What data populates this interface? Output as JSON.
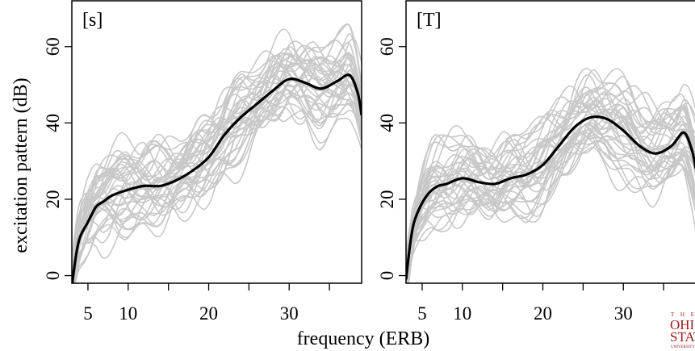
{
  "figure": {
    "xlabel": "frequency (ERB)",
    "ylabel": "excitation pattern (dB)"
  },
  "colors": {
    "individual_curve": "#c8c8c8",
    "mean_curve": "#000000",
    "logo": "#a0191e"
  },
  "logo": {
    "lines": [
      "T H E",
      "OHIO",
      "STATE",
      "UNIVERSITY"
    ]
  },
  "chart_data": [
    {
      "type": "line",
      "panel_label": "[s]",
      "xlabel": "frequency (ERB)",
      "ylabel": "excitation pattern (dB)",
      "xlim": [
        3,
        39
      ],
      "ylim": [
        -2,
        72
      ],
      "x_ticks": [
        5,
        10,
        20,
        30
      ],
      "x_minor_ticks": [
        15,
        25,
        35
      ],
      "y_ticks": [
        0,
        20,
        40,
        60
      ],
      "y_tick_labels": [
        "0",
        "20",
        "40",
        "60"
      ],
      "grid": false,
      "legend": "none",
      "series": [
        {
          "role": "mean",
          "x": [
            3,
            3.5,
            4,
            5,
            6,
            7,
            8,
            10,
            12,
            14,
            16,
            18,
            20,
            22,
            24,
            26,
            28,
            30,
            32,
            34,
            36,
            37.5,
            38.5,
            39
          ],
          "values": [
            -3,
            5,
            10,
            14,
            18,
            19.5,
            21,
            22.5,
            23.5,
            23.5,
            25,
            27.5,
            31,
            37,
            41.5,
            45,
            48.5,
            51.5,
            50.5,
            49,
            51,
            52.5,
            48,
            42
          ]
        }
      ]
    },
    {
      "type": "line",
      "panel_label": "[T]",
      "xlabel": "frequency (ERB)",
      "ylabel": "",
      "xlim": [
        3,
        39
      ],
      "ylim": [
        -2,
        72
      ],
      "x_ticks": [
        5,
        10,
        20,
        30
      ],
      "x_minor_ticks": [
        15,
        25,
        35
      ],
      "y_ticks": [
        0,
        20,
        40,
        60
      ],
      "y_tick_labels": [
        "0",
        "20",
        "40",
        "60"
      ],
      "grid": false,
      "legend": "none",
      "series": [
        {
          "role": "mean",
          "x": [
            3,
            3.5,
            4,
            5,
            6,
            7,
            8,
            10,
            12,
            14,
            16,
            18,
            20,
            22,
            24,
            26,
            28,
            30,
            32,
            34,
            36,
            37.5,
            38.5,
            39
          ],
          "values": [
            -1,
            8,
            14,
            19,
            22,
            23.5,
            24,
            25.5,
            24.5,
            24,
            25.5,
            26.5,
            29,
            34,
            39,
            41.5,
            41,
            38,
            34,
            32,
            34,
            37.5,
            33,
            28
          ]
        }
      ]
    }
  ]
}
